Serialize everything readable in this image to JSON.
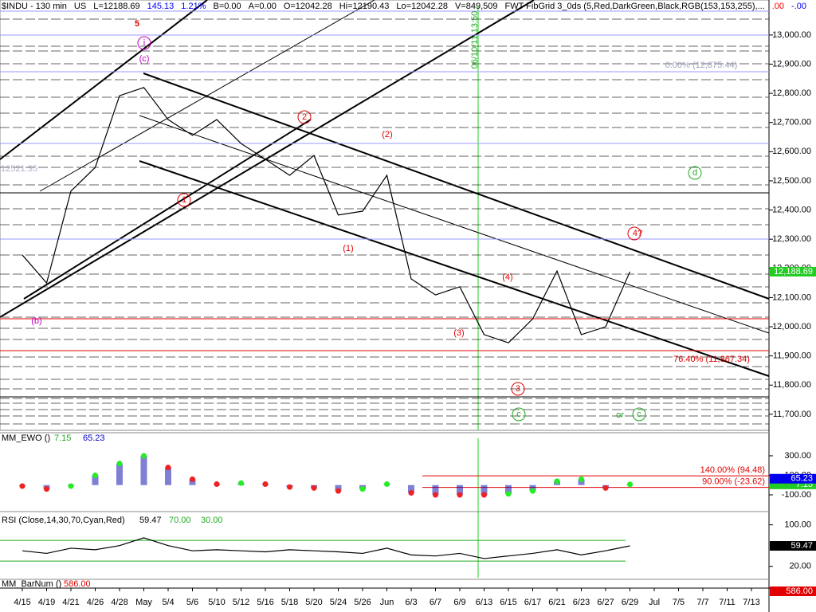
{
  "header": [
    {
      "text": "$INDU - 130 min",
      "color": "#000"
    },
    {
      "text": "US",
      "color": "#000"
    },
    {
      "text": "L=12188.69",
      "color": "#000"
    },
    {
      "text": "145.13",
      "color": "#00f"
    },
    {
      "text": "1.21%",
      "color": "#00f"
    },
    {
      "text": "B=0.00",
      "color": "#000"
    },
    {
      "text": "A=0.00",
      "color": "#000"
    },
    {
      "text": "O=12042.28",
      "color": "#000"
    },
    {
      "text": "Hi=12190.43",
      "color": "#000"
    },
    {
      "text": "Lo=12042.28",
      "color": "#000"
    },
    {
      "text": "V=849,509",
      "color": "#000"
    },
    {
      "text": "FWT FibGrid 3_0ds (5,Red,DarkGreen,Black,RGB(153,153,255),...",
      "color": "#000"
    },
    {
      "text": ".00",
      "color": "#f00"
    },
    {
      "text": "-.00",
      "color": "#00f"
    }
  ],
  "annotations": [
    {
      "text": "5",
      "color": "#e00000"
    },
    {
      "text": "i",
      "color": "#c000c0"
    },
    {
      "text": "(c)",
      "color": "#c000c0"
    },
    {
      "text": "(b)",
      "color": "#c000c0"
    },
    {
      "text": "1",
      "color": "#e00000"
    },
    {
      "text": "2",
      "color": "#e00000"
    },
    {
      "text": "(1)",
      "color": "#e00000"
    },
    {
      "text": "(2)",
      "color": "#e00000"
    },
    {
      "text": "(3)",
      "color": "#e00000"
    },
    {
      "text": "(4)",
      "color": "#e00000"
    },
    {
      "text": "3",
      "color": "#e00000"
    },
    {
      "text": "4?",
      "color": "#e00000"
    },
    {
      "text": "d",
      "color": "#22aa22"
    },
    {
      "text": "c",
      "color": "#22aa22"
    },
    {
      "text": "or",
      "color": "#22aa22"
    },
    {
      "text": "c",
      "color": "#22aa22"
    },
    {
      "text": "0.00% (12,875.44)",
      "color": "#a0a0c0"
    },
    {
      "text": "76.40% (11,867.34)",
      "color": "#e00000"
    },
    {
      "text": "12521.35",
      "color": "#b0b0d0"
    },
    {
      "text": "06/10/11 13:50",
      "color": "#22aa22"
    }
  ],
  "chart_data": [
    {
      "type": "line",
      "title": "",
      "color": "#000000",
      "categories": [
        "4/15",
        "4/19",
        "4/21",
        "4/26",
        "4/28",
        "May",
        "5/4",
        "5/6",
        "5/10",
        "5/12",
        "5/16",
        "5/18",
        "5/20",
        "5/24",
        "5/26",
        "Jun",
        "6/3",
        "6/7",
        "6/9",
        "6/13",
        "6/15",
        "6/17",
        "6/21",
        "6/23",
        "6/27",
        "6/29",
        "Jul",
        "7/5",
        "7/7",
        "7/11",
        "7/13"
      ],
      "values": [
        12246,
        12150,
        12465,
        12546,
        12792,
        12820,
        12710,
        12656,
        12710,
        12628,
        12574,
        12519,
        12587,
        12383,
        12396,
        12519,
        12164,
        12109,
        12137,
        11973,
        11945,
        12027,
        12191,
        11973,
        12000,
        12188.69,
        null,
        null,
        null,
        null,
        null
      ],
      "ylim": [
        11645,
        13098
      ],
      "yticks": [
        {
          "value": 11700,
          "label": "11,700.00"
        },
        {
          "value": 11800,
          "label": "11,800.00"
        },
        {
          "value": 11900,
          "label": "11,900.00"
        },
        {
          "value": 12000,
          "label": "12,000.00"
        },
        {
          "value": 12100,
          "label": "12,100.00"
        },
        {
          "value": 12200,
          "label": "12,200.00"
        },
        {
          "value": 12300,
          "label": "12,300.00"
        },
        {
          "value": 12400,
          "label": "12,400.00"
        },
        {
          "value": 12500,
          "label": "12,500.00"
        },
        {
          "value": 12600,
          "label": "12,600.00"
        },
        {
          "value": 12700,
          "label": "12,700.00"
        },
        {
          "value": 12800,
          "label": "12,800.00"
        },
        {
          "value": 12900,
          "label": "12,900.00"
        },
        {
          "value": 13000,
          "label": "13,000.00"
        }
      ],
      "last_label": {
        "value": 12188.69,
        "label": "12,188.69"
      }
    },
    {
      "type": "bar",
      "title": "MM_EWO ()",
      "color": "#0000aa",
      "values": [
        -10,
        -40,
        -10,
        100,
        220,
        300,
        180,
        60,
        10,
        20,
        10,
        -20,
        -30,
        -60,
        -40,
        10,
        -80,
        -100,
        -100,
        -100,
        -90,
        -60,
        40,
        60,
        -30,
        7.15
      ],
      "ylim": [
        -255,
        520
      ],
      "yticks": [
        {
          "value": 300,
          "label": "300.00"
        },
        {
          "value": 100,
          "label": "100.00"
        },
        {
          "value": -100,
          "label": "-100.00"
        }
      ],
      "legend_values": [
        {
          "value": 7.15,
          "label": "7.15",
          "color": "#22aa22"
        },
        {
          "value": 65.23,
          "label": "65.23",
          "color": "#0000cc"
        }
      ],
      "levels": [
        {
          "value": 94.48,
          "label": "140.00% (94.48)"
        },
        {
          "value": -23.62,
          "label": "90.00% (-23.62)"
        }
      ]
    },
    {
      "type": "line",
      "title": "RSI (Close,14,30,70,Cyan,Red)",
      "color": "#000000",
      "values": [
        50,
        45,
        55,
        52,
        60,
        75,
        60,
        50,
        52,
        50,
        48,
        52,
        50,
        48,
        45,
        55,
        42,
        40,
        45,
        35,
        40,
        45,
        52,
        42,
        50,
        59.47
      ],
      "ylim": [
        -2,
        121
      ],
      "yticks": [
        {
          "value": 100,
          "label": "100.00"
        },
        {
          "value": 20,
          "label": "20.00"
        }
      ],
      "last_label": {
        "value": 59.47,
        "label": "59.47"
      },
      "levels": [
        {
          "value": 70,
          "label": "70.00",
          "color": "#22aa22"
        },
        {
          "value": 30,
          "label": "30.00",
          "color": "#22aa22"
        }
      ]
    },
    {
      "type": "text",
      "title": "MM_BarNum ()",
      "last_label": {
        "value": 586,
        "label": "586.00"
      }
    }
  ]
}
